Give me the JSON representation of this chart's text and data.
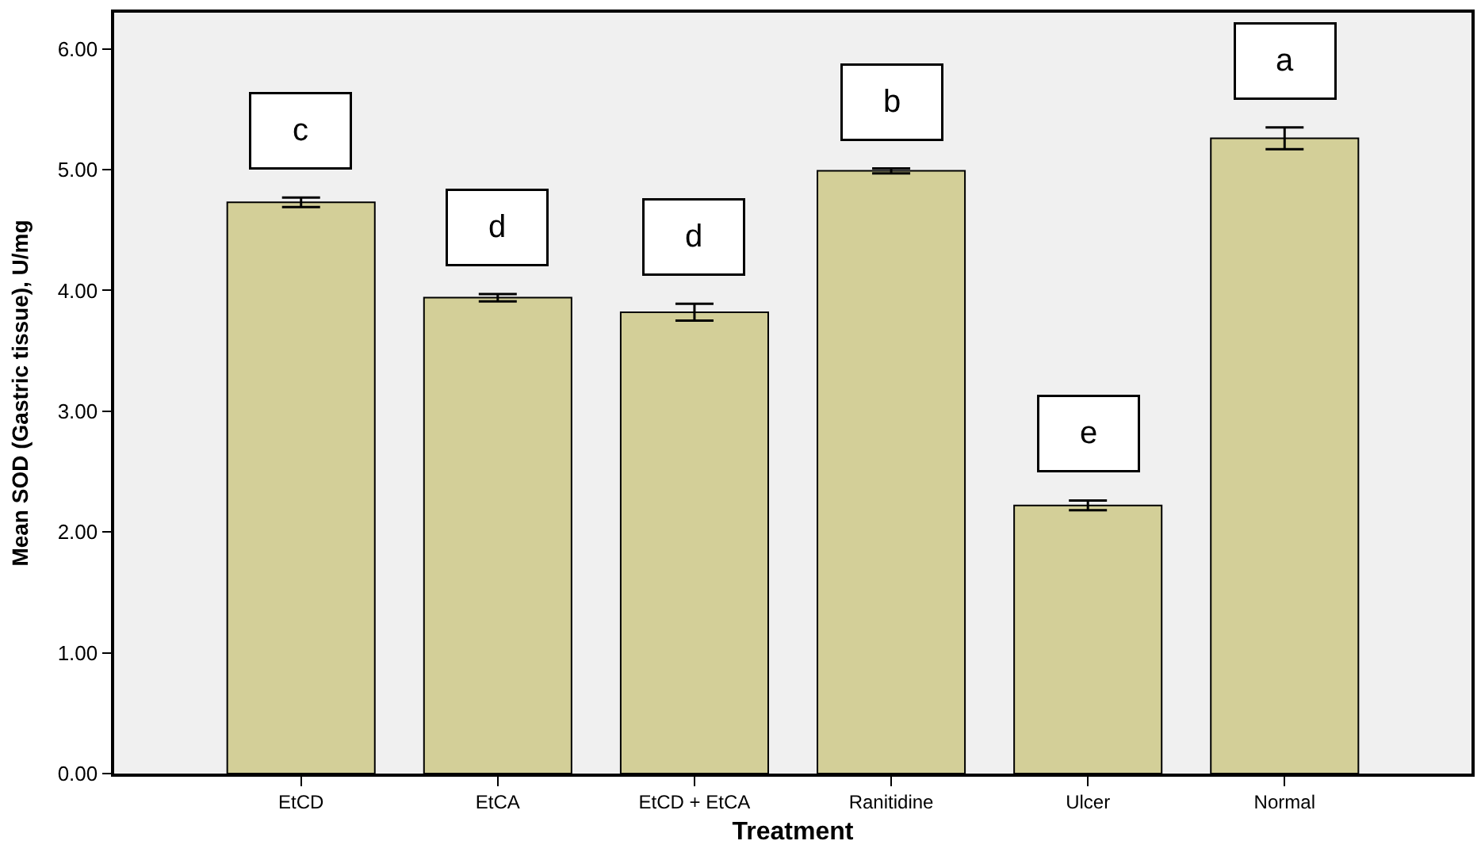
{
  "chart_data": {
    "type": "bar",
    "xlabel": "Treatment",
    "ylabel": "Mean SOD (Gastric tissue), U/mg",
    "categories": [
      "EtCD",
      "EtCA",
      "EtCD + EtCA",
      "Ranitidine",
      "Ulcer",
      "Normal"
    ],
    "values": [
      4.73,
      3.94,
      3.82,
      4.99,
      2.22,
      5.26
    ],
    "errors": [
      0.04,
      0.03,
      0.07,
      0.02,
      0.04,
      0.09
    ],
    "color": "#d3cf98",
    "ylim": [
      0,
      6.3
    ],
    "yticks": [
      {
        "value": 0,
        "label": "0.00"
      },
      {
        "value": 1,
        "label": "1.00"
      },
      {
        "value": 2,
        "label": "2.00"
      },
      {
        "value": 3,
        "label": "3.00"
      },
      {
        "value": 4,
        "label": "4.00"
      },
      {
        "value": 5,
        "label": "5.00"
      },
      {
        "value": 6,
        "label": "6.00"
      }
    ],
    "annotations": [
      "c",
      "d",
      "d",
      "b",
      "e",
      "a"
    ],
    "grid": false
  }
}
